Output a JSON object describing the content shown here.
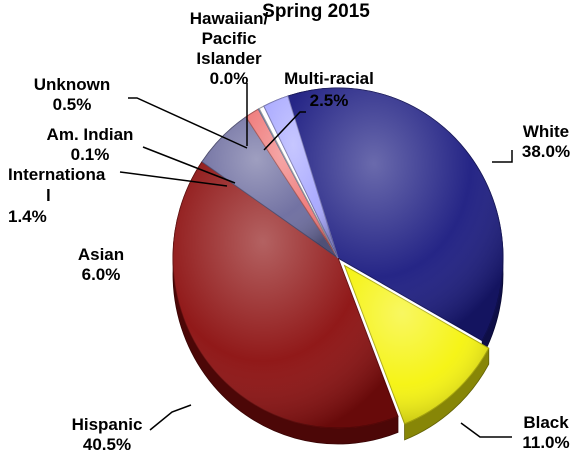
{
  "chart_data": {
    "type": "pie",
    "title": "Spring 2015",
    "slices": [
      {
        "label": "White",
        "value": 38.0,
        "value_label": "38.0%",
        "color": "#1a1a80"
      },
      {
        "label": "Black",
        "value": 11.0,
        "value_label": "11.0%",
        "color": "#f5f30c"
      },
      {
        "label": "Hispanic",
        "value": 40.5,
        "value_label": "40.5%",
        "color": "#8b0d0d"
      },
      {
        "label": "Asian",
        "value": 6.0,
        "value_label": "6.0%",
        "color": "#6b6b9e"
      },
      {
        "label": "International",
        "label_lines": [
          "Internationa",
          "l"
        ],
        "value": 1.4,
        "value_label": "1.4%",
        "color": "#ef7878"
      },
      {
        "label": "Am. Indian",
        "value": 0.1,
        "value_label": "0.1%",
        "color": "#8aa0d8"
      },
      {
        "label": "Unknown",
        "value": 0.5,
        "value_label": "0.5%",
        "color": "#ffffff"
      },
      {
        "label": "Hawaiian/ Pacific Islander",
        "label_lines": [
          "Hawaiian/",
          "Pacific",
          "Islander"
        ],
        "value": 0.0,
        "value_label": "0.0%",
        "color": "#c8b4e6"
      },
      {
        "label": "Multi-racial",
        "value": 2.5,
        "value_label": "2.5%",
        "color": "#a8a8ff"
      }
    ],
    "exploded": [
      "Black"
    ],
    "legend": "none",
    "style": "3d"
  }
}
